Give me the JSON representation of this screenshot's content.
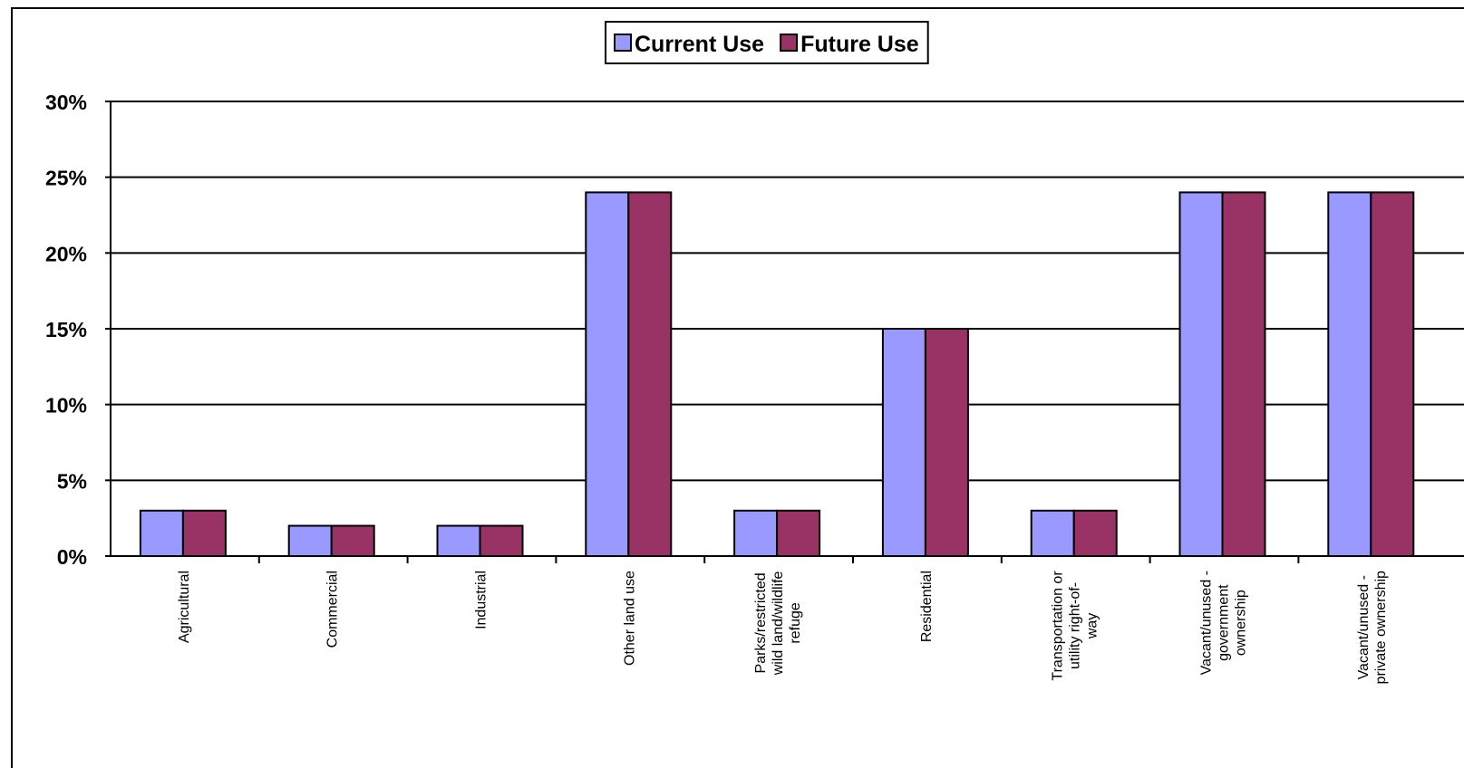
{
  "chart_data": {
    "type": "bar",
    "title": "",
    "xlabel": "",
    "ylabel": "",
    "ylim": [
      0,
      30
    ],
    "yticks": [
      "0%",
      "5%",
      "10%",
      "15%",
      "20%",
      "25%",
      "30%"
    ],
    "ytick_values": [
      0,
      5,
      10,
      15,
      20,
      25,
      30
    ],
    "grid": true,
    "legend_position": "top-center",
    "categories": [
      [
        "Agricultural"
      ],
      [
        "Commercial"
      ],
      [
        "Industrial"
      ],
      [
        "Other land use"
      ],
      [
        "Parks/restricted",
        "wild land/wildlife",
        "refuge"
      ],
      [
        "Residential"
      ],
      [
        "Transportation or",
        "utility right-of-",
        "way"
      ],
      [
        "Vacant/unused -",
        "government",
        "ownership"
      ],
      [
        "Vacant/unused -",
        "private ownership"
      ]
    ],
    "series": [
      {
        "name": "Current Use",
        "color": "#9999ff",
        "values": [
          3,
          2,
          2,
          24,
          3,
          15,
          3,
          24,
          24
        ]
      },
      {
        "name": "Future Use",
        "color": "#993366",
        "values": [
          3,
          2,
          2,
          24,
          3,
          15,
          3,
          24,
          24
        ]
      }
    ]
  }
}
